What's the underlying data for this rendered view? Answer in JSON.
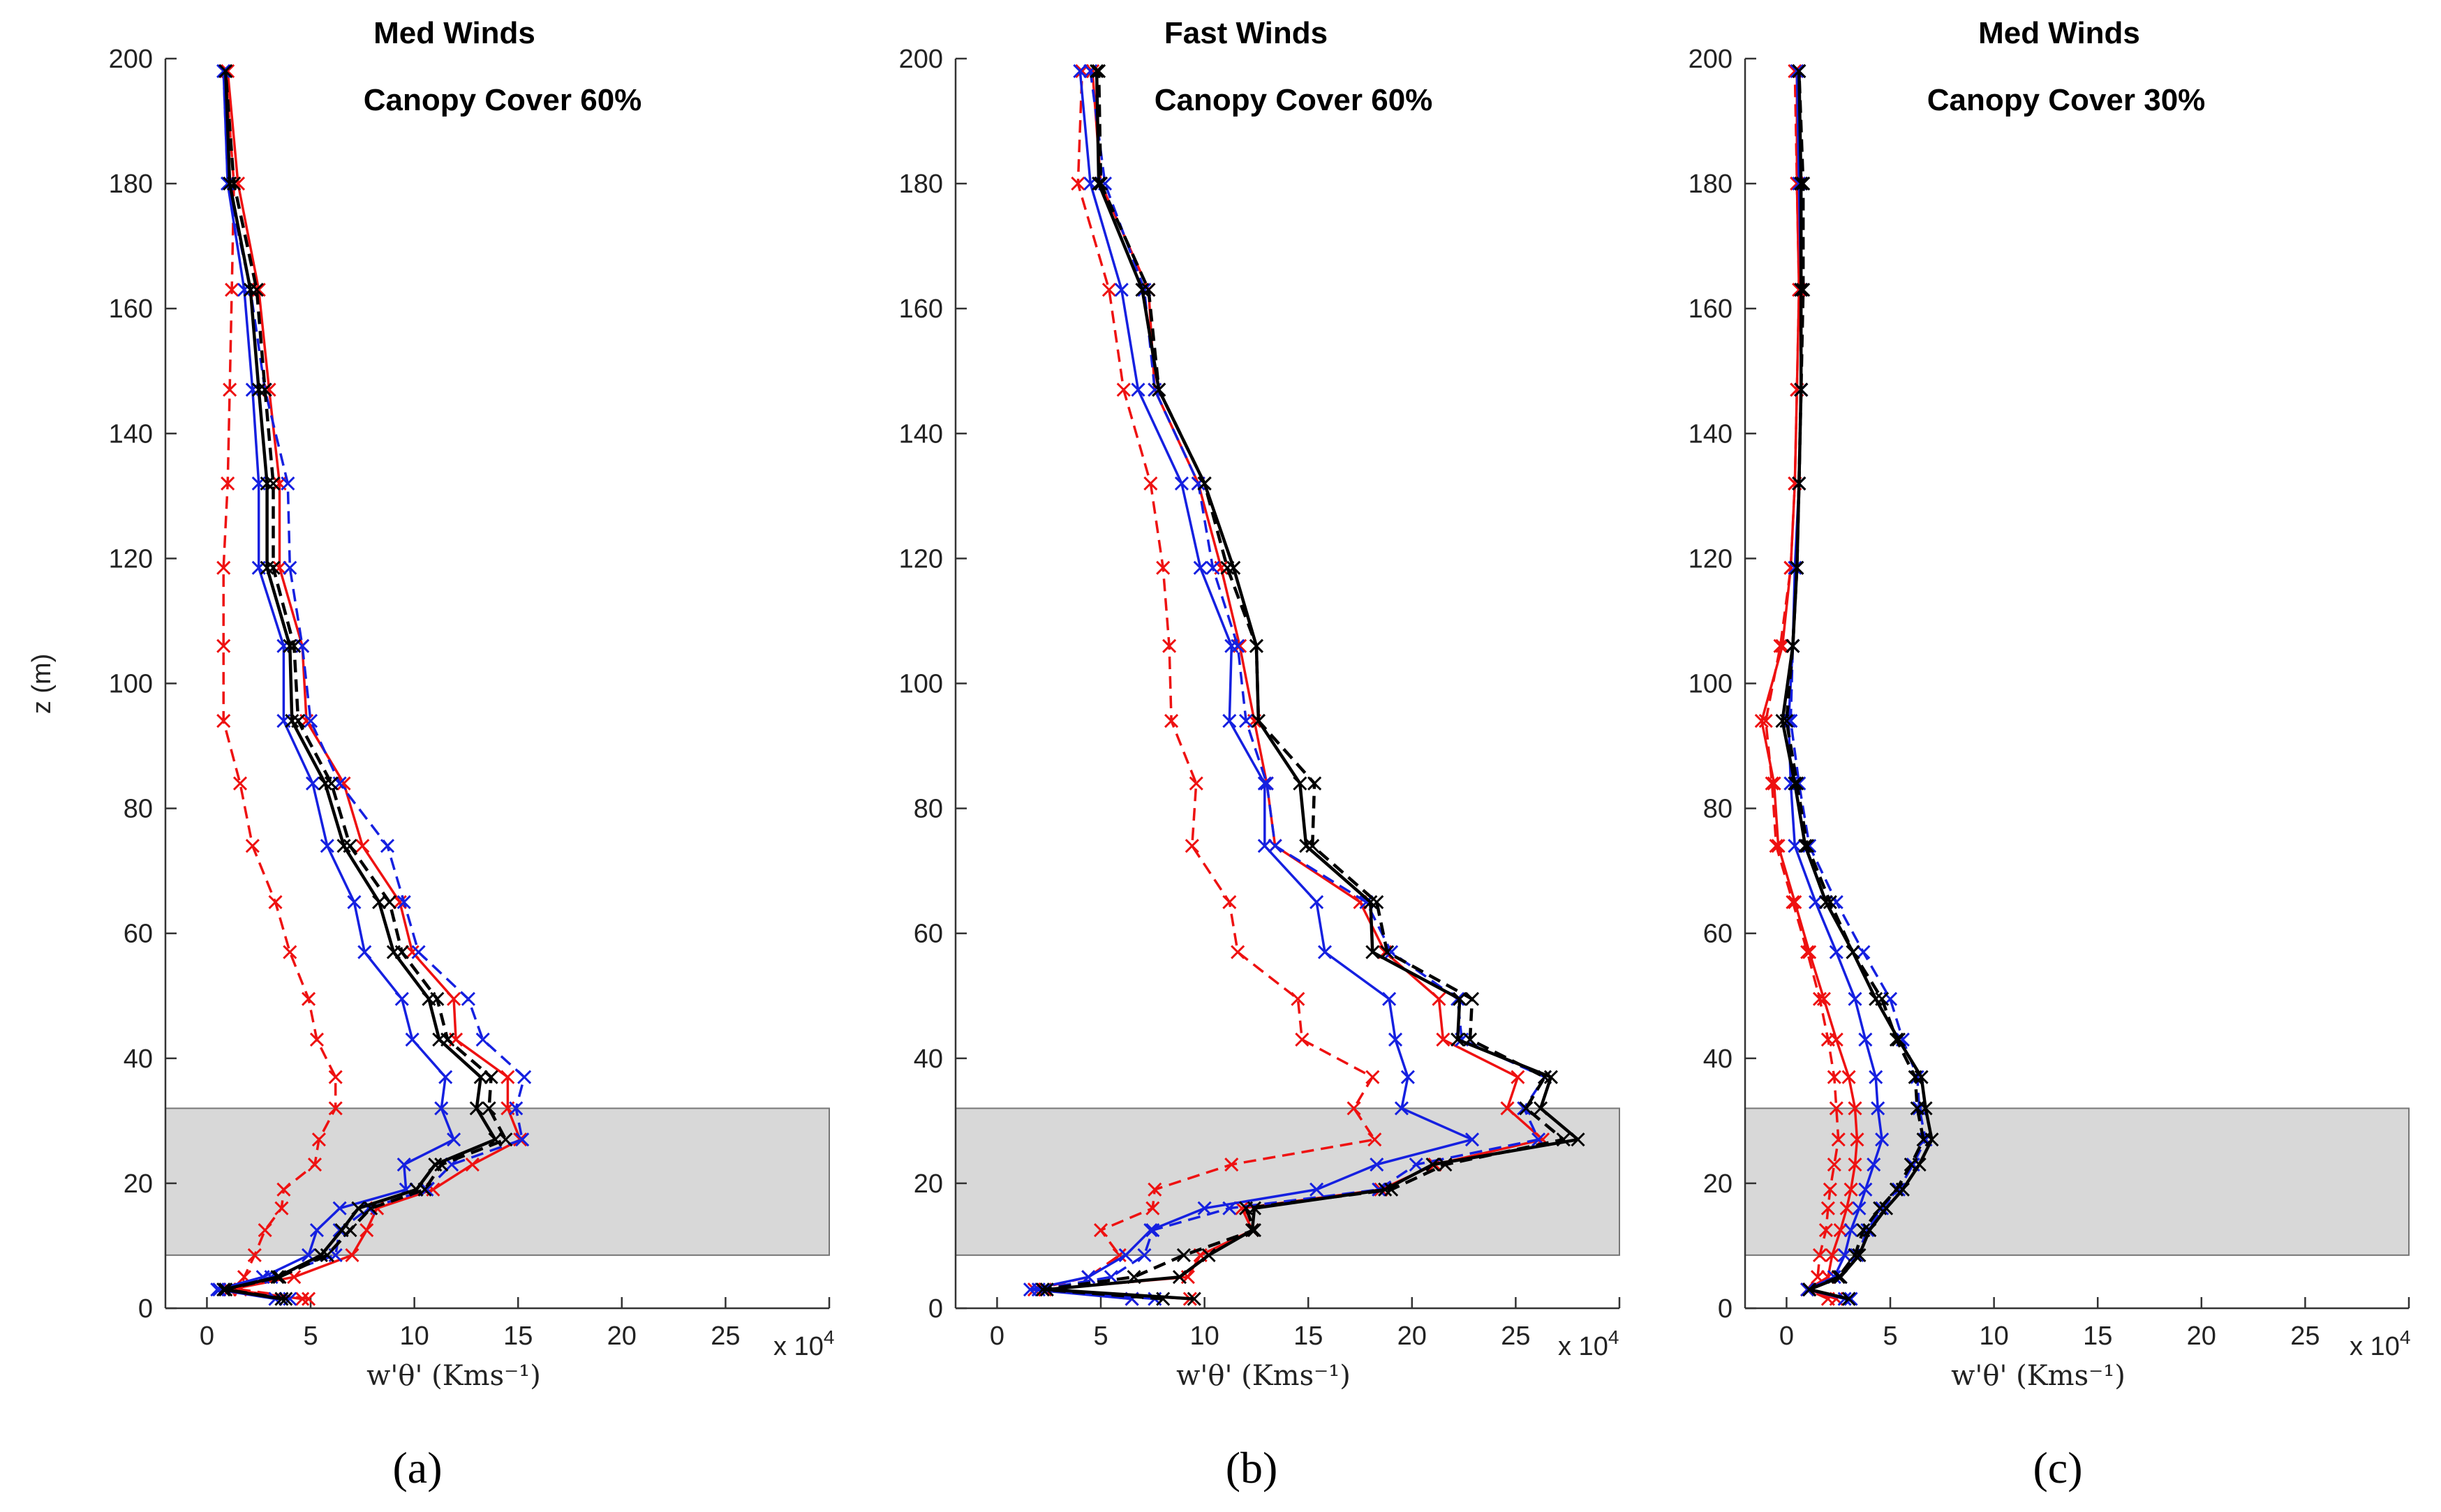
{
  "figure": {
    "colors": {
      "red": "#ee1111",
      "blue": "#1520e0",
      "black": "#000000",
      "canopy_fill": "#d8d8d8",
      "canopy_edge": "#777777"
    }
  },
  "chart_data": [
    {
      "type": "line",
      "panel_label": "(a)",
      "title": "Med Winds",
      "subtitle": "Canopy Cover 60%",
      "xlabel": "w'θ' (Kms⁻¹)",
      "ylabel": "z (m)",
      "x_multiplier": "x 10^4",
      "xlim": [
        -2,
        30
      ],
      "ylim": [
        0,
        200
      ],
      "xticks": [
        0,
        5,
        10,
        15,
        20,
        25
      ],
      "yticks": [
        0,
        20,
        40,
        60,
        80,
        100,
        120,
        140,
        160,
        180,
        200
      ],
      "canopy_band": [
        8.5,
        32
      ],
      "z": [
        1.5,
        3,
        5,
        8.5,
        12.5,
        16,
        19,
        23,
        27,
        32,
        37,
        43,
        49.5,
        57,
        65,
        74,
        84,
        94,
        106,
        118.5,
        132,
        147,
        163,
        180,
        198
      ],
      "series": [
        {
          "name": "red dashed",
          "color": "red",
          "style": "dashed",
          "values": [
            4.9,
            1.6,
            1.8,
            2.3,
            2.8,
            3.6,
            3.7,
            5.2,
            5.4,
            6.2,
            6.2,
            5.3,
            4.9,
            4.0,
            3.3,
            2.2,
            1.6,
            0.8,
            0.8,
            0.8,
            1.0,
            1.1,
            1.2,
            1.3,
            0.9
          ]
        },
        {
          "name": "red solid",
          "color": "red",
          "style": "solid",
          "values": [
            4.6,
            1.1,
            4.2,
            7.0,
            7.7,
            8.2,
            10.9,
            12.8,
            15.1,
            14.5,
            14.5,
            12.0,
            11.9,
            9.9,
            9.3,
            7.5,
            6.6,
            4.8,
            4.6,
            3.5,
            3.5,
            3.0,
            2.5,
            1.5,
            1.0
          ]
        },
        {
          "name": "blue dashed",
          "color": "blue",
          "style": "dashed",
          "values": [
            4.0,
            0.6,
            3.1,
            6.2,
            6.4,
            7.8,
            10.6,
            11.8,
            15.2,
            14.9,
            15.3,
            13.3,
            12.6,
            10.2,
            9.5,
            8.7,
            6.4,
            5.0,
            4.6,
            4.0,
            3.9,
            2.8,
            2.1,
            1.0,
            0.8
          ]
        },
        {
          "name": "blue solid",
          "color": "blue",
          "style": "solid",
          "values": [
            3.3,
            0.5,
            2.7,
            4.9,
            5.3,
            6.4,
            9.6,
            9.5,
            11.9,
            11.3,
            11.5,
            9.9,
            9.4,
            7.6,
            7.1,
            5.8,
            5.1,
            3.7,
            3.7,
            2.5,
            2.5,
            2.2,
            1.8,
            1.0,
            0.8
          ]
        },
        {
          "name": "black dashed",
          "color": "black",
          "style": "dashed",
          "values": [
            3.8,
            0.9,
            3.5,
            5.8,
            6.9,
            7.9,
            10.5,
            11.3,
            14.4,
            13.6,
            13.7,
            11.6,
            11.1,
            9.4,
            8.8,
            6.9,
            6.0,
            4.4,
            4.2,
            3.2,
            3.2,
            2.8,
            2.4,
            1.3,
            0.9
          ]
        },
        {
          "name": "black solid",
          "color": "black",
          "style": "solid",
          "values": [
            3.6,
            0.8,
            3.4,
            5.5,
            6.5,
            7.3,
            10.1,
            11.0,
            13.9,
            13.0,
            13.2,
            11.2,
            10.7,
            9.0,
            8.3,
            6.6,
            5.7,
            4.1,
            4.0,
            2.9,
            2.9,
            2.5,
            2.1,
            1.1,
            0.9
          ]
        }
      ]
    },
    {
      "type": "line",
      "panel_label": "(b)",
      "title": "Fast Winds",
      "subtitle": "Canopy Cover 60%",
      "xlabel": "w'θ' (Kms⁻¹)",
      "ylabel": "",
      "x_multiplier": "x 10^4",
      "xlim": [
        -2,
        30
      ],
      "ylim": [
        0,
        200
      ],
      "xticks": [
        0,
        5,
        10,
        15,
        20,
        25
      ],
      "yticks": [
        0,
        20,
        40,
        60,
        80,
        100,
        120,
        140,
        160,
        180,
        200
      ],
      "canopy_band": [
        8.5,
        32
      ],
      "z": [
        1.5,
        3,
        5,
        8.5,
        12.5,
        16,
        19,
        23,
        27,
        32,
        37,
        43,
        49.5,
        57,
        65,
        74,
        84,
        94,
        106,
        118.5,
        132,
        147,
        163,
        180,
        198
      ],
      "series": [
        {
          "name": "red dashed",
          "color": "red",
          "style": "dashed",
          "values": [
            6.5,
            1.8,
            4.4,
            5.9,
            5.0,
            7.5,
            7.6,
            11.3,
            18.2,
            17.2,
            18.1,
            14.7,
            14.5,
            11.6,
            11.2,
            9.4,
            9.6,
            8.4,
            8.3,
            8.0,
            7.4,
            6.1,
            5.4,
            3.9,
            4.1
          ]
        },
        {
          "name": "red solid",
          "color": "red",
          "style": "solid",
          "values": [
            9.3,
            2.3,
            9.2,
            9.8,
            12.3,
            11.8,
            18.5,
            21.1,
            26.3,
            24.6,
            25.1,
            21.5,
            21.3,
            18.7,
            17.5,
            13.4,
            13.0,
            12.4,
            11.7,
            10.8,
            9.7,
            7.6,
            7.3,
            5.0,
            4.6
          ]
        },
        {
          "name": "blue dashed",
          "color": "blue",
          "style": "dashed",
          "values": [
            7.6,
            2.0,
            5.5,
            7.1,
            7.5,
            11.2,
            18.4,
            20.2,
            26.1,
            25.4,
            26.4,
            22.4,
            22.2,
            19.0,
            17.8,
            13.4,
            13.0,
            12.0,
            11.6,
            10.4,
            9.7,
            7.6,
            7.1,
            5.2,
            4.5
          ]
        },
        {
          "name": "blue solid",
          "color": "blue",
          "style": "solid",
          "values": [
            6.5,
            1.6,
            4.4,
            6.2,
            7.4,
            10.0,
            15.4,
            18.3,
            22.9,
            19.5,
            19.8,
            19.2,
            18.9,
            15.8,
            15.4,
            12.9,
            12.9,
            11.2,
            11.3,
            9.8,
            8.9,
            6.8,
            6.0,
            4.5,
            4.0
          ]
        },
        {
          "name": "black dashed",
          "color": "black",
          "style": "dashed",
          "values": [
            8.0,
            2.2,
            6.6,
            9.0,
            12.4,
            12.0,
            19.0,
            21.6,
            27.3,
            25.5,
            26.4,
            22.8,
            22.9,
            18.8,
            18.3,
            15.2,
            15.3,
            12.6,
            12.5,
            11.1,
            10.0,
            7.8,
            7.3,
            5.0,
            4.9
          ]
        },
        {
          "name": "black solid",
          "color": "black",
          "style": "solid",
          "values": [
            9.5,
            2.4,
            8.8,
            10.2,
            12.3,
            12.4,
            18.7,
            21.0,
            28.0,
            26.2,
            26.7,
            22.2,
            22.3,
            18.1,
            18.0,
            14.9,
            14.6,
            12.6,
            12.5,
            11.4,
            10.0,
            7.8,
            7.0,
            4.9,
            4.8
          ]
        }
      ]
    },
    {
      "type": "line",
      "panel_label": "(c)",
      "title": "Med Winds",
      "subtitle": "Canopy Cover 30%",
      "xlabel": "w'θ' (Kms⁻¹)",
      "ylabel": "",
      "x_multiplier": "x 10^4",
      "xlim": [
        -2,
        30
      ],
      "ylim": [
        0,
        200
      ],
      "xticks": [
        0,
        5,
        10,
        15,
        20,
        25
      ],
      "yticks": [
        0,
        20,
        40,
        60,
        80,
        100,
        120,
        140,
        160,
        180,
        200
      ],
      "canopy_band": [
        8.5,
        32
      ],
      "z": [
        1.5,
        3,
        5,
        8.5,
        12.5,
        16,
        19,
        23,
        27,
        32,
        37,
        43,
        49.5,
        57,
        65,
        74,
        84,
        94,
        106,
        118.5,
        132,
        147,
        163,
        180,
        198
      ],
      "series": [
        {
          "name": "red dashed",
          "color": "red",
          "style": "dashed",
          "values": [
            2.0,
            1.0,
            1.5,
            1.6,
            1.9,
            2.0,
            2.1,
            2.3,
            2.5,
            2.4,
            2.3,
            2.0,
            1.6,
            1.0,
            0.3,
            -0.5,
            -0.7,
            -1.0,
            -0.3,
            0.2,
            0.4,
            0.5,
            0.6,
            0.5,
            0.4
          ]
        },
        {
          "name": "red solid",
          "color": "red",
          "style": "solid",
          "values": [
            2.4,
            1.0,
            2.0,
            2.2,
            2.6,
            2.9,
            3.1,
            3.3,
            3.4,
            3.3,
            3.0,
            2.4,
            1.8,
            1.1,
            0.4,
            -0.4,
            -0.6,
            -1.2,
            -0.2,
            0.2,
            0.4,
            0.5,
            0.6,
            0.5,
            0.5
          ]
        },
        {
          "name": "blue dashed",
          "color": "blue",
          "style": "dashed",
          "values": [
            3.1,
            1.1,
            2.6,
            3.4,
            3.9,
            4.6,
            5.4,
            6.1,
            6.7,
            6.4,
            6.3,
            5.6,
            5.0,
            3.7,
            2.4,
            1.1,
            0.6,
            0.2,
            0.3,
            0.5,
            0.6,
            0.7,
            0.7,
            0.7,
            0.6
          ]
        },
        {
          "name": "blue solid",
          "color": "blue",
          "style": "solid",
          "values": [
            2.8,
            1.0,
            2.3,
            2.8,
            3.1,
            3.5,
            3.8,
            4.2,
            4.6,
            4.4,
            4.3,
            3.8,
            3.3,
            2.4,
            1.4,
            0.4,
            0.2,
            0.1,
            0.3,
            0.4,
            0.6,
            0.7,
            0.7,
            0.6,
            0.5
          ]
        },
        {
          "name": "black dashed",
          "color": "black",
          "style": "dashed",
          "values": [
            3.0,
            1.1,
            2.5,
            3.3,
            3.7,
            4.5,
            5.3,
            6.0,
            6.6,
            6.3,
            6.2,
            5.3,
            4.6,
            3.2,
            2.1,
            1.0,
            0.5,
            0.0,
            0.3,
            0.5,
            0.6,
            0.7,
            0.8,
            0.8,
            0.6
          ]
        },
        {
          "name": "black solid",
          "color": "black",
          "style": "solid",
          "values": [
            3.0,
            1.1,
            2.6,
            3.5,
            4.0,
            4.8,
            5.6,
            6.4,
            7.0,
            6.7,
            6.5,
            5.4,
            4.3,
            3.2,
            1.9,
            0.9,
            0.4,
            -0.2,
            0.3,
            0.5,
            0.6,
            0.7,
            0.7,
            0.7,
            0.6
          ]
        }
      ]
    }
  ]
}
